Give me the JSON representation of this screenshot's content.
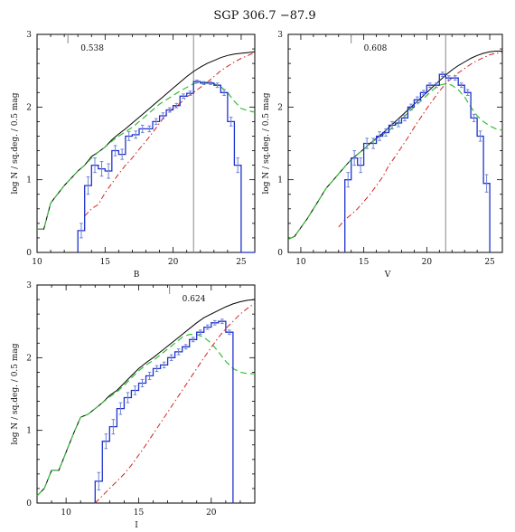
{
  "figure": {
    "title": "SGP 306.7  −87.9"
  },
  "colors": {
    "total": "#000000",
    "histogram": "#1f33cc",
    "errorbars": "#6f82d8",
    "green_model": "#30c030",
    "red_model": "#d42020",
    "marker": "#888888"
  },
  "chart_data": [
    {
      "type": "line",
      "panel": "B",
      "xlabel": "B",
      "ylabel": "log N / sq.deg. / 0.5 mag",
      "xlim": [
        10,
        26
      ],
      "ylim": [
        0,
        3
      ],
      "xticks": [
        "10",
        "15",
        "20",
        "25"
      ],
      "yticks": [
        "0",
        "1",
        "2",
        "3"
      ],
      "annotation": "0.538",
      "annotation_x": 13.2,
      "vline_x": 21.5,
      "series": [
        {
          "role": "total",
          "x": [
            10,
            10.5,
            11,
            11.5,
            12,
            12.5,
            13,
            13.5,
            14,
            14.5,
            15,
            15.5,
            16,
            16.5,
            17,
            17.5,
            18,
            18.5,
            19,
            19.5,
            20,
            20.5,
            21,
            21.5,
            22,
            22.5,
            23,
            23.5,
            24,
            24.5,
            25,
            25.5,
            26
          ],
          "y": [
            0.32,
            0.32,
            0.68,
            0.8,
            0.92,
            1.02,
            1.12,
            1.2,
            1.32,
            1.38,
            1.45,
            1.55,
            1.63,
            1.7,
            1.78,
            1.86,
            1.94,
            2.02,
            2.1,
            2.18,
            2.26,
            2.34,
            2.42,
            2.49,
            2.55,
            2.6,
            2.64,
            2.68,
            2.71,
            2.73,
            2.74,
            2.75,
            2.76
          ]
        },
        {
          "role": "green",
          "x": [
            10,
            10.5,
            11,
            11.5,
            12,
            12.5,
            13,
            13.5,
            14,
            14.5,
            15,
            15.5,
            16,
            16.5,
            17,
            17.5,
            18,
            18.5,
            19,
            19.5,
            20,
            20.5,
            21,
            21.5,
            22,
            22.5,
            23,
            23.5,
            24,
            24.5,
            25,
            25.5,
            26
          ],
          "y": [
            0.32,
            0.32,
            0.68,
            0.8,
            0.92,
            1.02,
            1.12,
            1.2,
            1.3,
            1.38,
            1.45,
            1.53,
            1.6,
            1.66,
            1.72,
            1.8,
            1.88,
            1.96,
            2.04,
            2.1,
            2.16,
            2.22,
            2.27,
            2.32,
            2.34,
            2.34,
            2.32,
            2.28,
            2.2,
            2.08,
            1.98,
            1.95,
            1.93
          ]
        },
        {
          "role": "red",
          "x": [
            13.5,
            14,
            14.5,
            15,
            15.5,
            16,
            16.5,
            17,
            17.5,
            18,
            18.5,
            19,
            19.5,
            20,
            20.5,
            21,
            21.5,
            22,
            22.5,
            23,
            23.5,
            24,
            24.5,
            25,
            25.5,
            26
          ],
          "y": [
            0.5,
            0.6,
            0.66,
            0.82,
            0.95,
            1.08,
            1.2,
            1.3,
            1.42,
            1.53,
            1.65,
            1.78,
            1.9,
            1.98,
            2.05,
            2.14,
            2.2,
            2.27,
            2.34,
            2.42,
            2.5,
            2.56,
            2.62,
            2.67,
            2.71,
            2.75
          ]
        },
        {
          "role": "histogram",
          "bins": [
            13,
            13.5,
            14,
            14.5,
            15,
            15.5,
            16,
            16.5,
            17,
            17.5,
            18,
            18.5,
            19,
            19.5,
            20,
            20.5,
            21,
            21.5,
            22,
            22.5,
            23,
            23.5,
            24,
            24.5,
            25,
            25.5,
            26
          ],
          "y": [
            0.3,
            0.92,
            1.2,
            1.15,
            1.12,
            1.4,
            1.35,
            1.6,
            1.62,
            1.7,
            1.7,
            1.8,
            1.88,
            1.96,
            2.02,
            2.15,
            2.19,
            2.35,
            2.33,
            2.33,
            2.3,
            2.2,
            1.8,
            1.2,
            0.0,
            0.0
          ],
          "err": [
            0.1,
            0.12,
            0.1,
            0.1,
            0.1,
            0.07,
            0.07,
            0.06,
            0.05,
            0.05,
            0.04,
            0.04,
            0.04,
            0.03,
            0.03,
            0.03,
            0.03,
            0.02,
            0.02,
            0.02,
            0.03,
            0.04,
            0.06,
            0.1,
            0,
            0
          ]
        }
      ]
    },
    {
      "type": "line",
      "panel": "V",
      "xlabel": "V",
      "ylabel": "log N / sq.deg. / 0.5 mag",
      "xlim": [
        9,
        26
      ],
      "ylim": [
        0,
        3
      ],
      "xticks": [
        "10",
        "15",
        "20",
        "25"
      ],
      "yticks": [
        "0",
        "1",
        "2",
        "3"
      ],
      "annotation": "0.608",
      "annotation_x": 15,
      "vline_x": 21.5,
      "series": [
        {
          "role": "total",
          "x": [
            9,
            9.5,
            10,
            10.5,
            11,
            11.5,
            12,
            12.5,
            13,
            13.5,
            14,
            14.5,
            15,
            15.5,
            16,
            16.5,
            17,
            17.5,
            18,
            18.5,
            19,
            19.5,
            20,
            20.5,
            21,
            21.5,
            22,
            22.5,
            23,
            23.5,
            24,
            24.5,
            25,
            25.5,
            26
          ],
          "y": [
            0.18,
            0.22,
            0.34,
            0.46,
            0.6,
            0.74,
            0.88,
            0.98,
            1.08,
            1.18,
            1.28,
            1.35,
            1.42,
            1.5,
            1.57,
            1.64,
            1.72,
            1.8,
            1.88,
            1.96,
            2.04,
            2.12,
            2.2,
            2.28,
            2.36,
            2.44,
            2.51,
            2.57,
            2.62,
            2.67,
            2.71,
            2.74,
            2.76,
            2.77,
            2.77
          ]
        },
        {
          "role": "green",
          "x": [
            9,
            9.5,
            10,
            10.5,
            11,
            11.5,
            12,
            12.5,
            13,
            13.5,
            14,
            14.5,
            15,
            15.5,
            16,
            16.5,
            17,
            17.5,
            18,
            18.5,
            19,
            19.5,
            20,
            20.5,
            21,
            21.5,
            22,
            22.5,
            23,
            23.5,
            24,
            24.5,
            25,
            25.5,
            26
          ],
          "y": [
            0.18,
            0.22,
            0.34,
            0.46,
            0.6,
            0.74,
            0.88,
            0.98,
            1.08,
            1.18,
            1.28,
            1.35,
            1.42,
            1.5,
            1.56,
            1.62,
            1.68,
            1.75,
            1.83,
            1.92,
            2.0,
            2.08,
            2.16,
            2.24,
            2.3,
            2.32,
            2.3,
            2.24,
            2.14,
            2.0,
            1.88,
            1.8,
            1.74,
            1.7,
            1.68
          ]
        },
        {
          "role": "red",
          "x": [
            13,
            13.5,
            14,
            14.5,
            15,
            15.5,
            16,
            16.5,
            17,
            17.5,
            18,
            18.5,
            19,
            19.5,
            20,
            20.5,
            21,
            21.5,
            22,
            22.5,
            23,
            23.5,
            24,
            24.5,
            25,
            25.5,
            26
          ],
          "y": [
            0.35,
            0.45,
            0.52,
            0.6,
            0.7,
            0.8,
            0.92,
            1.04,
            1.2,
            1.32,
            1.45,
            1.58,
            1.72,
            1.85,
            1.98,
            2.1,
            2.22,
            2.32,
            2.4,
            2.47,
            2.53,
            2.59,
            2.64,
            2.68,
            2.72,
            2.74,
            2.75
          ]
        },
        {
          "role": "histogram",
          "bins": [
            13.5,
            14,
            14.5,
            15,
            15.5,
            16,
            16.5,
            17,
            17.5,
            18,
            18.5,
            19,
            19.5,
            20,
            20.5,
            21,
            21.5,
            22,
            22.5,
            23,
            23.5,
            24,
            24.5,
            25
          ],
          "y": [
            1.0,
            1.3,
            1.2,
            1.5,
            1.5,
            1.6,
            1.65,
            1.75,
            1.78,
            1.85,
            2.0,
            2.1,
            2.2,
            2.3,
            2.3,
            2.45,
            2.4,
            2.4,
            2.3,
            2.2,
            1.85,
            1.6,
            0.95
          ],
          "err": [
            0.1,
            0.1,
            0.1,
            0.07,
            0.07,
            0.06,
            0.05,
            0.05,
            0.05,
            0.04,
            0.04,
            0.04,
            0.03,
            0.03,
            0.03,
            0.03,
            0.03,
            0.03,
            0.03,
            0.04,
            0.05,
            0.07,
            0.12
          ]
        }
      ]
    },
    {
      "type": "line",
      "panel": "I",
      "xlabel": "I",
      "ylabel": "log N / sq.deg. / 0.5 mag",
      "xlim": [
        8,
        23
      ],
      "ylim": [
        0,
        3
      ],
      "xticks": [
        "10",
        "15",
        "20"
      ],
      "yticks": [
        "0",
        "1",
        "2",
        "3"
      ],
      "annotation": "0.624",
      "annotation_x": 18,
      "series": [
        {
          "role": "total",
          "x": [
            8,
            8.5,
            9,
            9.5,
            10,
            10.5,
            11,
            11.5,
            12,
            12.5,
            13,
            13.5,
            14,
            14.5,
            15,
            15.5,
            16,
            16.5,
            17,
            17.5,
            18,
            18.5,
            19,
            19.5,
            20,
            20.5,
            21,
            21.5,
            22,
            22.5,
            23
          ],
          "y": [
            0.1,
            0.2,
            0.45,
            0.45,
            0.7,
            0.95,
            1.18,
            1.22,
            1.3,
            1.38,
            1.48,
            1.55,
            1.65,
            1.75,
            1.85,
            1.93,
            2.0,
            2.08,
            2.16,
            2.24,
            2.32,
            2.4,
            2.48,
            2.55,
            2.6,
            2.65,
            2.7,
            2.74,
            2.77,
            2.79,
            2.8
          ]
        },
        {
          "role": "green",
          "x": [
            8,
            8.5,
            9,
            9.5,
            10,
            10.5,
            11,
            11.5,
            12,
            12.5,
            13,
            13.5,
            14,
            14.5,
            15,
            15.5,
            16,
            16.5,
            17,
            17.5,
            18,
            18.5,
            19,
            19.5,
            20,
            20.5,
            21,
            21.5,
            22,
            22.5,
            23
          ],
          "y": [
            0.1,
            0.2,
            0.45,
            0.45,
            0.7,
            0.95,
            1.18,
            1.22,
            1.3,
            1.38,
            1.46,
            1.53,
            1.62,
            1.72,
            1.82,
            1.9,
            1.96,
            2.04,
            2.12,
            2.2,
            2.28,
            2.32,
            2.32,
            2.28,
            2.2,
            2.08,
            1.95,
            1.85,
            1.8,
            1.78,
            1.78
          ]
        },
        {
          "role": "red",
          "x": [
            12,
            12.5,
            13,
            13.5,
            14,
            14.5,
            15,
            15.5,
            16,
            16.5,
            17,
            17.5,
            18,
            18.5,
            19,
            19.5,
            20,
            20.5,
            21,
            21.5,
            22,
            22.5,
            23
          ],
          "y": [
            0.0,
            0.1,
            0.2,
            0.3,
            0.4,
            0.52,
            0.66,
            0.8,
            0.95,
            1.1,
            1.25,
            1.4,
            1.55,
            1.7,
            1.85,
            2.0,
            2.14,
            2.28,
            2.4,
            2.5,
            2.6,
            2.68,
            2.75
          ]
        },
        {
          "role": "histogram",
          "bins": [
            12,
            12.5,
            13,
            13.5,
            14,
            14.5,
            15,
            15.5,
            16,
            16.5,
            17,
            17.5,
            18,
            18.5,
            19,
            19.5,
            20,
            20.5,
            21,
            21.5
          ],
          "y": [
            0.3,
            0.85,
            1.05,
            1.3,
            1.45,
            1.55,
            1.65,
            1.75,
            1.85,
            1.9,
            2.0,
            2.08,
            2.15,
            2.25,
            2.35,
            2.42,
            2.48,
            2.5,
            2.35
          ],
          "err": [
            0.12,
            0.1,
            0.1,
            0.08,
            0.07,
            0.06,
            0.05,
            0.05,
            0.04,
            0.04,
            0.04,
            0.04,
            0.03,
            0.03,
            0.03,
            0.03,
            0.03,
            0.03,
            0.03
          ]
        }
      ]
    }
  ]
}
